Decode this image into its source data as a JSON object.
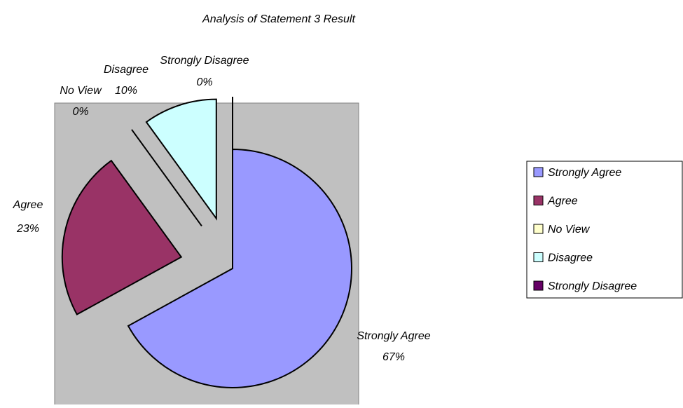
{
  "chart_data": {
    "type": "pie",
    "title": "Analysis of Statement  3 Result",
    "categories": [
      "Strongly Agree",
      "Agree",
      "No View",
      "Disagree",
      "Strongly Disagree"
    ],
    "values": [
      67,
      23,
      0,
      10,
      0
    ],
    "value_labels": [
      "67%",
      "23%",
      "0%",
      "10%",
      "0%"
    ],
    "colors": [
      "#9999ff",
      "#993366",
      "#ffffcc",
      "#ccffff",
      "#660066"
    ],
    "legend": "right"
  }
}
